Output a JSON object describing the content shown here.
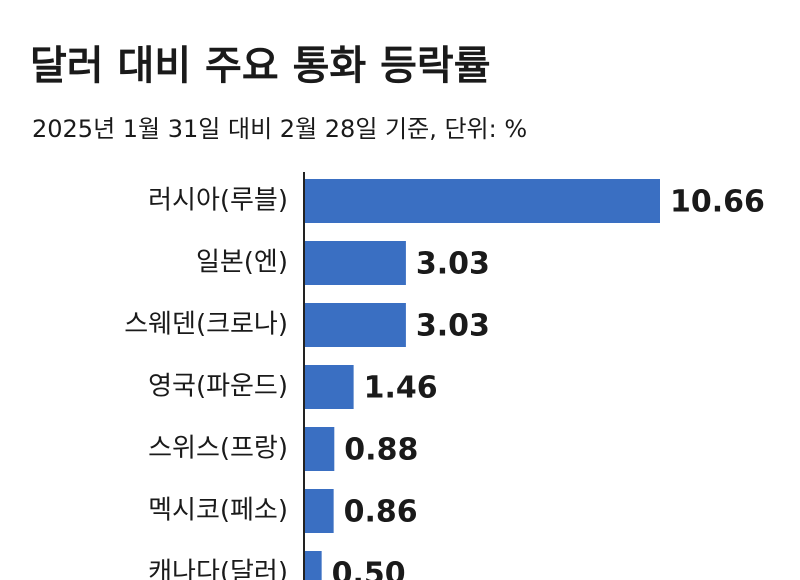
{
  "chart_data": {
    "type": "barh",
    "title": "달러 대비 주요 통화 등락률",
    "subtitle": "2025년 1월 31일 대비 2월 28일 기준, 단위: %",
    "categories": [
      "러시아(루블)",
      "일본(엔)",
      "스웨덴(크로나)",
      "영국(파운드)",
      "스위스(프랑)",
      "멕시코(페소)",
      "캐나다(달러)"
    ],
    "values": [
      10.66,
      3.03,
      3.03,
      1.46,
      0.88,
      0.86,
      0.5
    ],
    "value_labels": [
      "10.66",
      "3.03",
      "3.03",
      "1.46",
      "0.88",
      "0.86",
      "0.50"
    ],
    "color": "#3a6fc2"
  }
}
